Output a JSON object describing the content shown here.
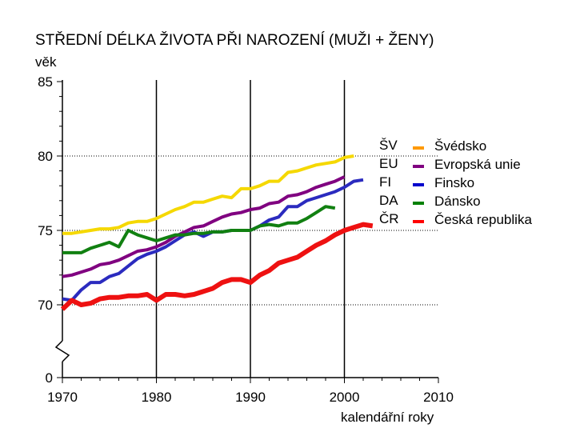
{
  "chart_data": {
    "type": "line",
    "title": "STŘEDNÍ DÉLKA ŽIVOTA PŘI NAROZENÍ (MUŽI + ŽENY)",
    "ylabel": "věk",
    "xlabel": "kalendářní roky",
    "xlim": [
      1970,
      2010
    ],
    "ylim_upper": [
      70,
      85
    ],
    "y_broken_axis_lower": 0,
    "x_ticks": [
      "1970",
      "1980",
      "1990",
      "2000",
      "2010"
    ],
    "y_ticks": [
      "0",
      "70",
      "75",
      "80",
      "85"
    ],
    "grid": "dotted horizontal at 75 and 80; vertical at 1980, 1990, 2000",
    "series": [
      {
        "code": "ŠV",
        "name": "Švédsko",
        "legend_color": "#ff9900",
        "line_color": "#f5d800",
        "x": [
          1970,
          1971,
          1972,
          1973,
          1974,
          1975,
          1976,
          1977,
          1978,
          1979,
          1980,
          1981,
          1982,
          1983,
          1984,
          1985,
          1986,
          1987,
          1988,
          1989,
          1990,
          1991,
          1992,
          1993,
          1994,
          1995,
          1996,
          1997,
          1998,
          1999,
          2000,
          2001
        ],
        "values": [
          74.8,
          74.8,
          74.9,
          75.0,
          75.1,
          75.1,
          75.2,
          75.5,
          75.6,
          75.6,
          75.8,
          76.1,
          76.4,
          76.6,
          76.9,
          76.9,
          77.1,
          77.3,
          77.2,
          77.8,
          77.8,
          78.0,
          78.3,
          78.3,
          78.9,
          79.0,
          79.2,
          79.4,
          79.5,
          79.6,
          79.9,
          80.0
        ]
      },
      {
        "code": "EU",
        "name": "Evropská unie",
        "legend_color": "#800080",
        "line_color": "#800080",
        "x": [
          1970,
          1971,
          1972,
          1973,
          1974,
          1975,
          1976,
          1977,
          1978,
          1979,
          1980,
          1981,
          1982,
          1983,
          1984,
          1985,
          1986,
          1987,
          1988,
          1989,
          1990,
          1991,
          1992,
          1993,
          1994,
          1995,
          1996,
          1997,
          1998,
          1999,
          2000
        ],
        "values": [
          71.9,
          72.0,
          72.2,
          72.4,
          72.7,
          72.8,
          73.0,
          73.3,
          73.6,
          73.7,
          73.9,
          74.2,
          74.6,
          74.9,
          75.2,
          75.3,
          75.6,
          75.9,
          76.1,
          76.2,
          76.4,
          76.5,
          76.8,
          76.9,
          77.3,
          77.4,
          77.6,
          77.9,
          78.1,
          78.3,
          78.6
        ]
      },
      {
        "code": "FI",
        "name": "Finsko",
        "legend_color": "#0000cc",
        "line_color": "#2b2bbf",
        "x": [
          1970,
          1971,
          1972,
          1973,
          1974,
          1975,
          1976,
          1977,
          1978,
          1979,
          1980,
          1981,
          1982,
          1983,
          1984,
          1985,
          1986,
          1987,
          1988,
          1989,
          1990,
          1991,
          1992,
          1993,
          1994,
          1995,
          1996,
          1997,
          1998,
          1999,
          2000,
          2001,
          2002
        ],
        "values": [
          70.4,
          70.3,
          71.0,
          71.5,
          71.5,
          71.9,
          72.1,
          72.6,
          73.1,
          73.4,
          73.6,
          73.9,
          74.3,
          74.7,
          74.9,
          74.6,
          74.9,
          74.9,
          75.0,
          75.0,
          75.0,
          75.3,
          75.7,
          75.9,
          76.6,
          76.6,
          77.0,
          77.2,
          77.4,
          77.6,
          77.9,
          78.3,
          78.4
        ]
      },
      {
        "code": "DA",
        "name": "Dánsko",
        "legend_color": "#008000",
        "line_color": "#118011",
        "x": [
          1970,
          1971,
          1972,
          1973,
          1974,
          1975,
          1976,
          1977,
          1978,
          1979,
          1980,
          1981,
          1982,
          1983,
          1984,
          1985,
          1986,
          1987,
          1988,
          1989,
          1990,
          1991,
          1992,
          1993,
          1994,
          1995,
          1996,
          1997,
          1998,
          1999
        ],
        "values": [
          73.5,
          73.5,
          73.5,
          73.8,
          74.0,
          74.2,
          73.9,
          75.0,
          74.7,
          74.5,
          74.3,
          74.5,
          74.7,
          74.7,
          74.8,
          74.8,
          74.9,
          74.9,
          75.0,
          75.0,
          75.0,
          75.3,
          75.4,
          75.3,
          75.5,
          75.5,
          75.8,
          76.2,
          76.6,
          76.5
        ]
      },
      {
        "code": "ČR",
        "name": "Česká republika",
        "legend_color": "#ff0000",
        "line_color": "#ee1111",
        "x": [
          1970,
          1971,
          1972,
          1973,
          1974,
          1975,
          1976,
          1977,
          1978,
          1979,
          1980,
          1981,
          1982,
          1983,
          1984,
          1985,
          1986,
          1987,
          1988,
          1989,
          1990,
          1991,
          1992,
          1993,
          1994,
          1995,
          1996,
          1997,
          1998,
          1999,
          2000,
          2001,
          2002,
          2003
        ],
        "values": [
          69.7,
          70.3,
          70.0,
          70.1,
          70.4,
          70.5,
          70.5,
          70.6,
          70.6,
          70.7,
          70.3,
          70.7,
          70.7,
          70.6,
          70.7,
          70.9,
          71.1,
          71.5,
          71.7,
          71.7,
          71.5,
          72.0,
          72.3,
          72.8,
          73.0,
          73.2,
          73.6,
          74.0,
          74.3,
          74.7,
          75.0,
          75.2,
          75.4,
          75.3
        ]
      }
    ]
  }
}
